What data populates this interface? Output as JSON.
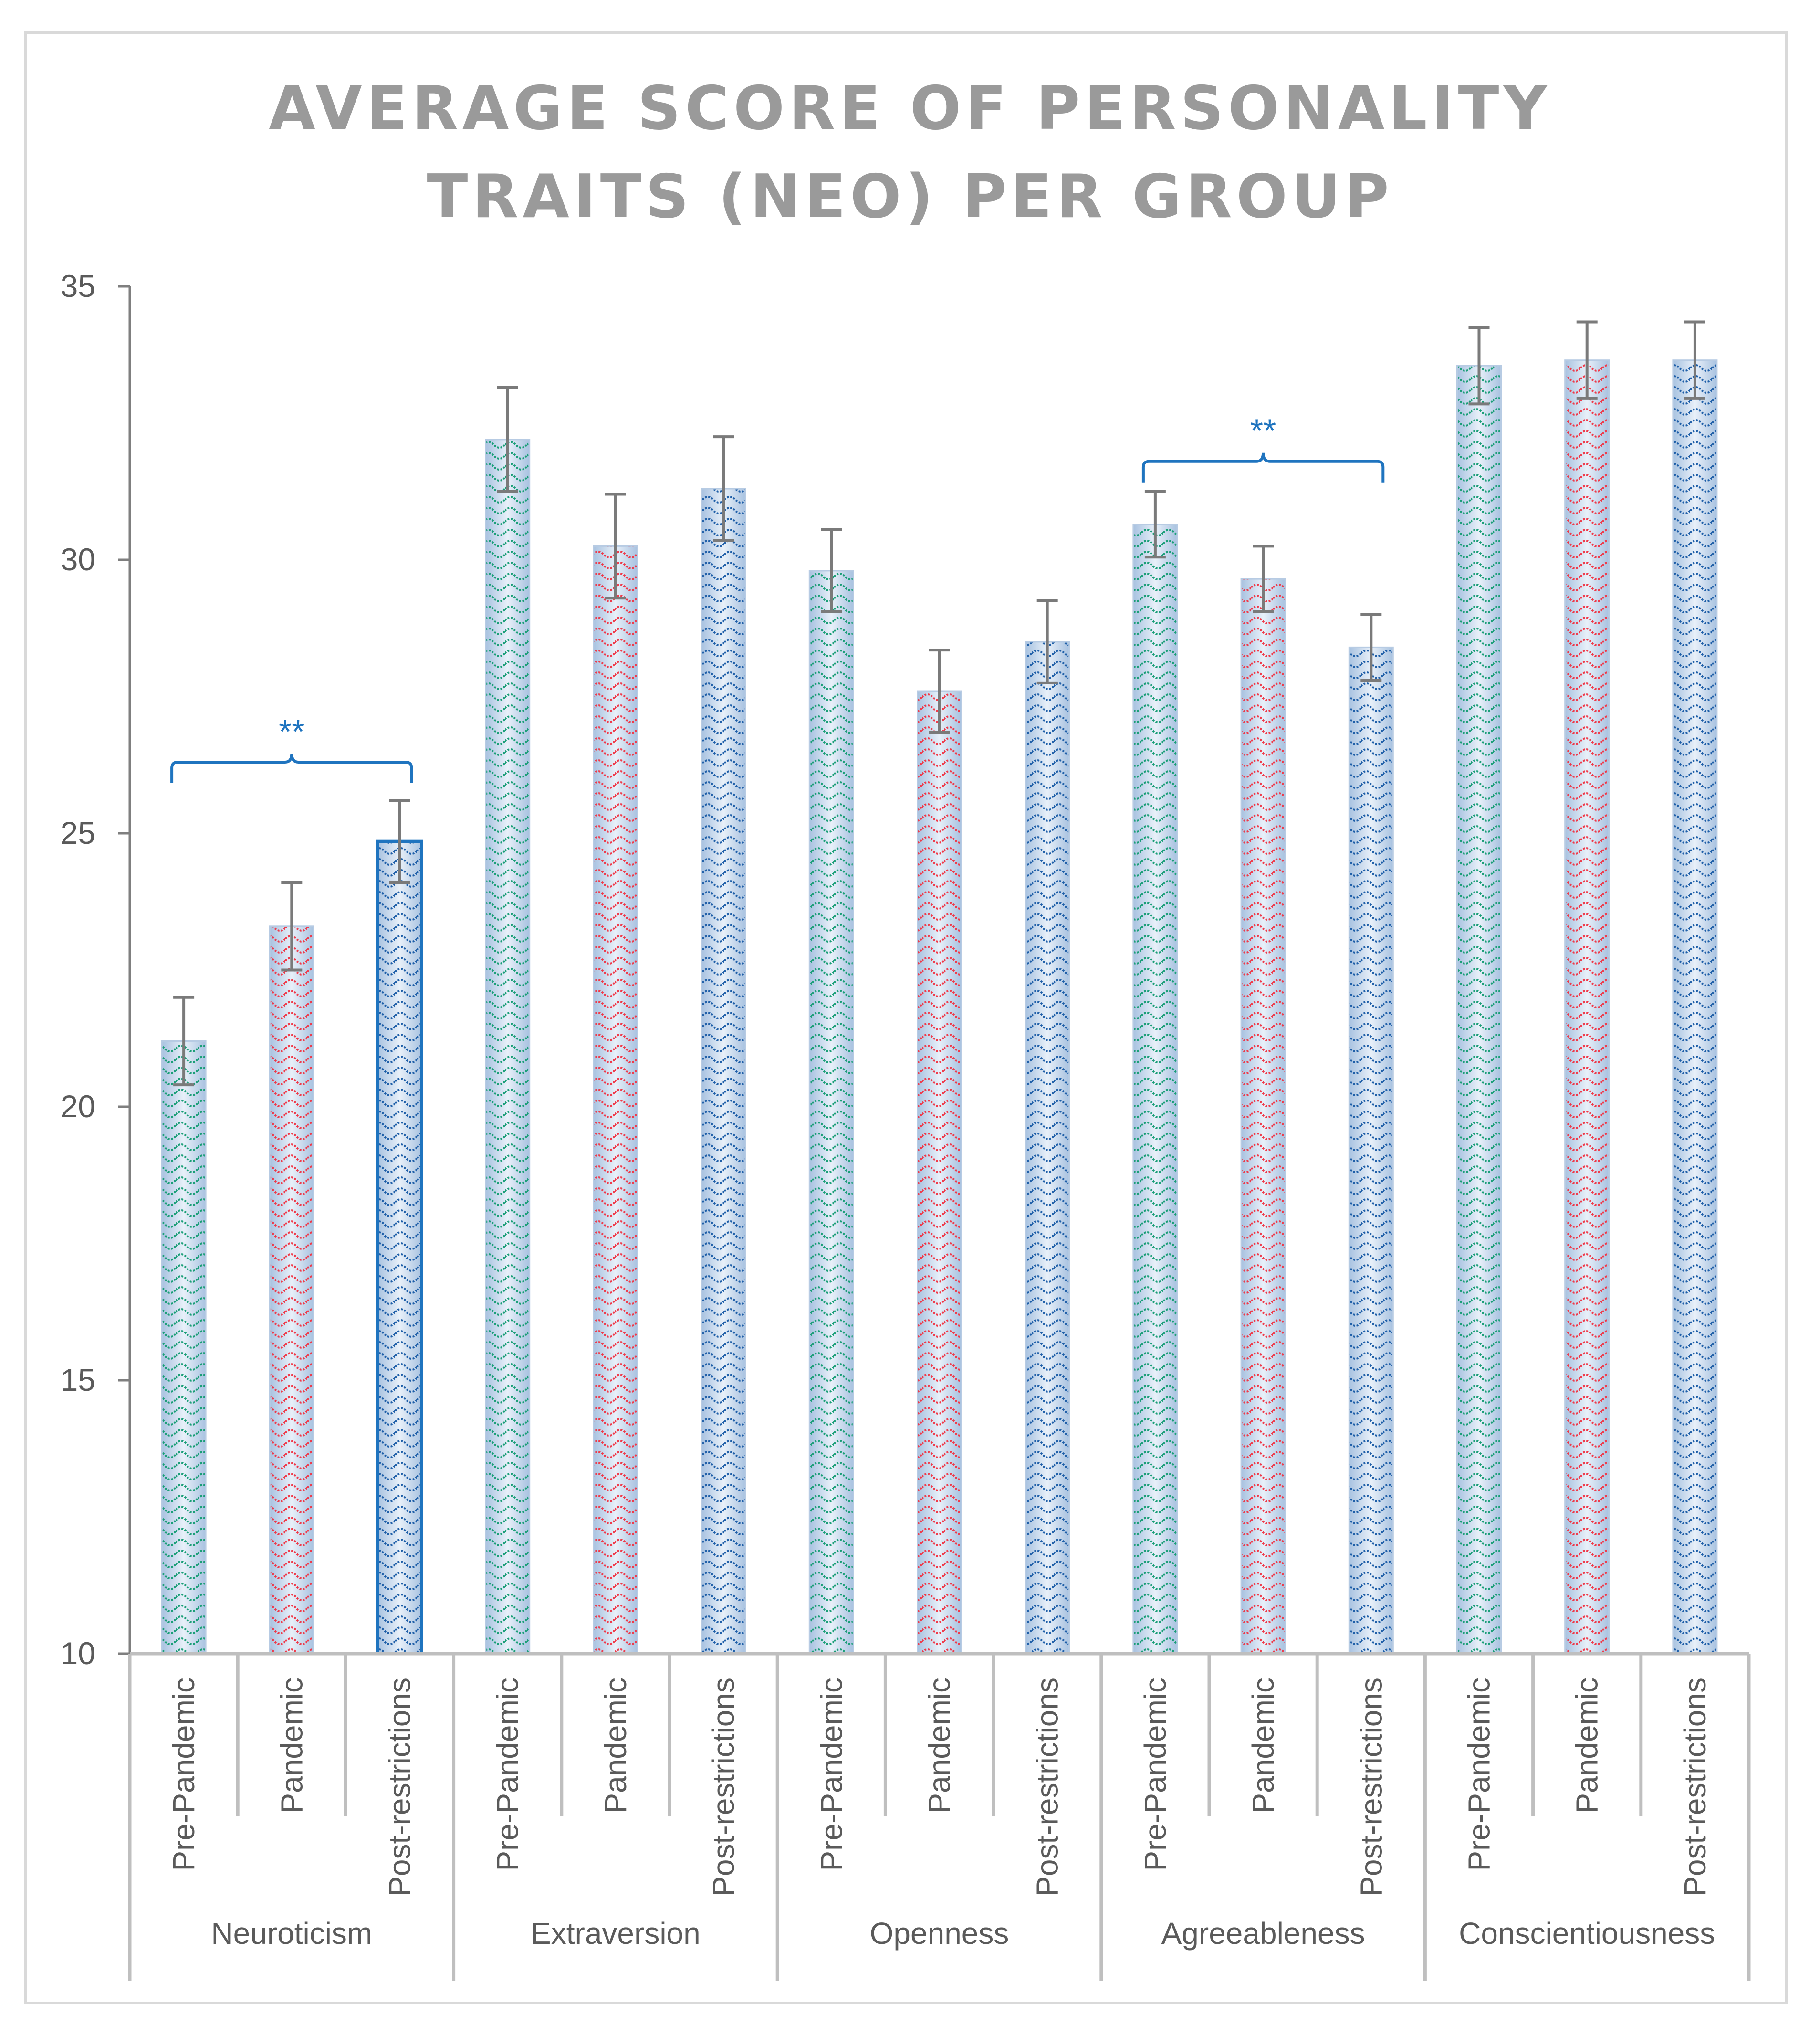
{
  "chart_data": {
    "type": "bar",
    "title_lines": [
      "AVERAGE SCORE OF PERSONALITY",
      "TRAITS (NEO) PER GROUP"
    ],
    "ylim": [
      10,
      35
    ],
    "yticks": [
      10,
      15,
      20,
      25,
      30,
      35
    ],
    "xlabel": "",
    "ylabel": "",
    "groups": [
      {
        "name": "Neuroticism",
        "bars": [
          {
            "label": "Pre-Pandemic",
            "value": 21.2,
            "err": 0.8
          },
          {
            "label": "Pandemic",
            "value": 23.3,
            "err": 0.8
          },
          {
            "label": "Post-restrictions",
            "value": 24.85,
            "err": 0.75
          }
        ]
      },
      {
        "name": "Extraversion",
        "bars": [
          {
            "label": "Pre-Pandemic",
            "value": 32.2,
            "err": 0.95
          },
          {
            "label": "Pandemic",
            "value": 30.25,
            "err": 0.95
          },
          {
            "label": "Post-restrictions",
            "value": 31.3,
            "err": 0.95
          }
        ]
      },
      {
        "name": "Openness",
        "bars": [
          {
            "label": "Pre-Pandemic",
            "value": 29.8,
            "err": 0.75
          },
          {
            "label": "Pandemic",
            "value": 27.6,
            "err": 0.75
          },
          {
            "label": "Post-restrictions",
            "value": 28.5,
            "err": 0.75
          }
        ]
      },
      {
        "name": "Agreeableness",
        "bars": [
          {
            "label": "Pre-Pandemic",
            "value": 30.65,
            "err": 0.6
          },
          {
            "label": "Pandemic",
            "value": 29.65,
            "err": 0.6
          },
          {
            "label": "Post-restrictions",
            "value": 28.4,
            "err": 0.6
          }
        ]
      },
      {
        "name": "Conscientiousness",
        "bars": [
          {
            "label": "Pre-Pandemic",
            "value": 33.55,
            "err": 0.7
          },
          {
            "label": "Pandemic",
            "value": 33.65,
            "err": 0.7
          },
          {
            "label": "Post-restrictions",
            "value": 33.65,
            "err": 0.7
          }
        ]
      }
    ],
    "series_colors": {
      "Pre-Pandemic": "#1a9e77",
      "Pandemic": "#ef3a4a",
      "Post-restrictions": "#1f5fa8"
    },
    "bar_fill": "#c5d7ec",
    "significance": [
      {
        "group": "Neuroticism",
        "from": "Pre-Pandemic",
        "to": "Post-restrictions",
        "label": "**",
        "y": 26.3
      },
      {
        "group": "Agreeableness",
        "from": "Pre-Pandemic",
        "to": "Post-restrictions",
        "label": "**",
        "y": 31.8
      }
    ]
  }
}
